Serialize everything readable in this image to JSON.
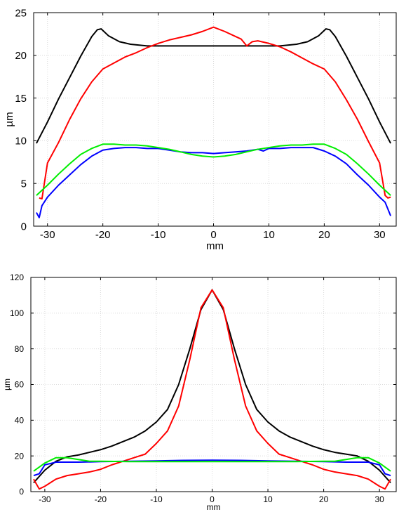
{
  "chart_data": [
    {
      "type": "line",
      "title": "",
      "xlabel": "mm",
      "ylabel": "µm",
      "xlim": [
        -32.5,
        33
      ],
      "ylim": [
        0,
        25
      ],
      "xticks": [
        -30,
        -20,
        -10,
        0,
        10,
        20,
        30
      ],
      "yticks": [
        0,
        5,
        10,
        15,
        20,
        25
      ],
      "grid": true,
      "series": [
        {
          "color": "#000000",
          "x": [
            -32,
            -30,
            -28,
            -26,
            -24,
            -22,
            -21,
            -20.3,
            -19,
            -17,
            -15,
            -12,
            -10,
            -5,
            0,
            5,
            10,
            12,
            15,
            17,
            19,
            20.3,
            21,
            22,
            24,
            26,
            28,
            30,
            32
          ],
          "y": [
            9.7,
            12.2,
            14.9,
            17.4,
            19.9,
            22.2,
            23.0,
            23.1,
            22.3,
            21.6,
            21.3,
            21.1,
            21.1,
            21.1,
            21.1,
            21.1,
            21.1,
            21.1,
            21.3,
            21.6,
            22.3,
            23.1,
            23.0,
            22.2,
            19.9,
            17.4,
            14.9,
            12.2,
            9.7
          ]
        },
        {
          "color": "#ff0000",
          "x": [
            -31.5,
            -31,
            -30,
            -28,
            -26,
            -24,
            -22,
            -20,
            -18,
            -16,
            -14,
            -12,
            -10,
            -8,
            -6,
            -4,
            -2,
            0,
            2,
            4,
            5,
            6,
            7,
            8,
            10,
            12,
            14,
            16,
            18,
            20,
            22,
            24,
            26,
            28,
            30,
            31,
            31.5,
            32
          ],
          "y": [
            3.3,
            3.2,
            7.4,
            9.8,
            12.5,
            14.9,
            16.9,
            18.4,
            19.1,
            19.8,
            20.3,
            20.9,
            21.4,
            21.8,
            22.1,
            22.4,
            22.8,
            23.3,
            22.8,
            22.2,
            21.9,
            21.1,
            21.6,
            21.7,
            21.4,
            21.0,
            20.4,
            19.7,
            19.0,
            18.4,
            16.9,
            14.8,
            12.5,
            9.9,
            7.4,
            3.6,
            3.3,
            3.4
          ]
        },
        {
          "color": "#0000ff",
          "x": [
            -32,
            -31.5,
            -31,
            -30,
            -28,
            -26,
            -24,
            -22,
            -20,
            -18,
            -16,
            -14,
            -12,
            -10,
            -8,
            -6,
            -4,
            -2,
            0,
            2,
            4,
            6,
            8,
            9,
            10,
            12,
            14,
            16,
            18,
            20,
            22,
            24,
            26,
            28,
            30,
            31,
            31.5,
            32
          ],
          "y": [
            1.6,
            1.0,
            2.4,
            3.4,
            4.8,
            6.0,
            7.2,
            8.2,
            8.9,
            9.1,
            9.2,
            9.2,
            9.1,
            9.1,
            8.9,
            8.7,
            8.6,
            8.6,
            8.5,
            8.6,
            8.7,
            8.8,
            9.0,
            8.8,
            9.1,
            9.1,
            9.2,
            9.2,
            9.2,
            8.8,
            8.2,
            7.3,
            6.0,
            4.8,
            3.4,
            2.8,
            2.0,
            1.2
          ]
        },
        {
          "color": "#00ee00",
          "x": [
            -32,
            -30,
            -28,
            -26,
            -24,
            -22,
            -20,
            -18,
            -16,
            -14,
            -12,
            -10,
            -8,
            -6,
            -4,
            -2,
            0,
            2,
            4,
            6,
            8,
            10,
            12,
            14,
            16,
            18,
            20,
            22,
            24,
            26,
            28,
            30,
            32
          ],
          "y": [
            3.6,
            4.8,
            6.1,
            7.3,
            8.4,
            9.1,
            9.6,
            9.6,
            9.5,
            9.5,
            9.4,
            9.2,
            9.0,
            8.7,
            8.4,
            8.2,
            8.1,
            8.2,
            8.4,
            8.7,
            9.0,
            9.2,
            9.4,
            9.5,
            9.5,
            9.6,
            9.6,
            9.1,
            8.4,
            7.3,
            6.1,
            4.8,
            3.6
          ]
        }
      ]
    },
    {
      "type": "line",
      "title": "",
      "xlabel": "mm",
      "ylabel": "µm",
      "xlim": [
        -32.5,
        33
      ],
      "ylim": [
        0,
        120
      ],
      "xticks": [
        -30,
        -20,
        -10,
        0,
        10,
        20,
        30
      ],
      "yticks": [
        0,
        20,
        40,
        60,
        80,
        100,
        120
      ],
      "grid": true,
      "series": [
        {
          "color": "#000000",
          "x": [
            -32,
            -30,
            -28,
            -26,
            -24,
            -22,
            -20,
            -18,
            -16,
            -14,
            -12,
            -10,
            -8,
            -6,
            -4,
            -2,
            0,
            2,
            4,
            6,
            8,
            10,
            12,
            14,
            16,
            18,
            20,
            22,
            24,
            26,
            28,
            30,
            32
          ],
          "y": [
            5,
            12,
            17,
            19.5,
            20.5,
            22,
            23.5,
            25.5,
            28,
            30.5,
            34,
            39,
            46,
            60,
            80,
            102,
            113,
            102,
            80,
            60,
            46,
            39,
            34,
            30.5,
            28,
            25.5,
            23.5,
            22,
            21,
            20,
            17,
            12,
            5
          ]
        },
        {
          "color": "#ff0000",
          "x": [
            -32,
            -31,
            -30,
            -28,
            -26,
            -24,
            -22,
            -20,
            -18,
            -16,
            -14,
            -12,
            -10,
            -8,
            -6,
            -4,
            -2,
            0,
            2,
            4,
            6,
            8,
            10,
            12,
            14,
            16,
            18,
            20,
            22,
            24,
            26,
            28,
            30,
            31,
            32
          ],
          "y": [
            7,
            1.5,
            3,
            7,
            9,
            10,
            11,
            12.5,
            15,
            17,
            19,
            21,
            27,
            34,
            48,
            74,
            103,
            113,
            103,
            74,
            48,
            34,
            27,
            21,
            19,
            17,
            15,
            12.5,
            11,
            10,
            9,
            7,
            3,
            1.5,
            7
          ]
        },
        {
          "color": "#0000ff",
          "x": [
            -32,
            -31,
            -30,
            -28,
            -26,
            -24,
            -20,
            -15,
            -10,
            -5,
            0,
            5,
            10,
            15,
            20,
            24,
            26,
            28,
            30,
            31,
            32
          ],
          "y": [
            9,
            10,
            15,
            16.5,
            16.5,
            16.5,
            16.8,
            17,
            17.2,
            17.5,
            17.6,
            17.5,
            17.2,
            17,
            16.8,
            16.5,
            16.5,
            16.5,
            15,
            10,
            9
          ]
        },
        {
          "color": "#00ee00",
          "x": [
            -32,
            -30,
            -28,
            -26,
            -24,
            -22,
            -20,
            -15,
            -10,
            -5,
            0,
            5,
            10,
            15,
            20,
            22,
            24,
            26,
            28,
            30,
            32
          ],
          "y": [
            11.5,
            16,
            19,
            19,
            18,
            17,
            17,
            16.8,
            16.8,
            16.8,
            16.8,
            16.8,
            16.8,
            16.8,
            17,
            17,
            18,
            19,
            19,
            16,
            11.5
          ]
        }
      ]
    }
  ]
}
